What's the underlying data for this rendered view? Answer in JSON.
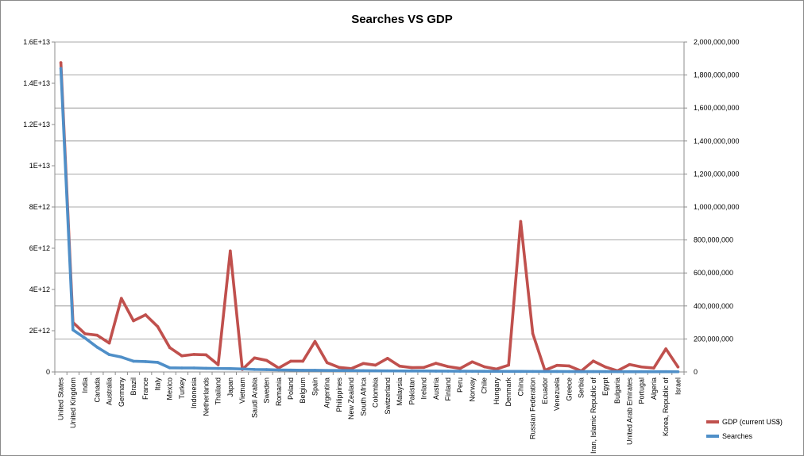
{
  "chart_data": {
    "type": "line",
    "title": "Searches VS GDP",
    "xlabel": "",
    "ylabel": "",
    "y2label": "",
    "legend_position": "right",
    "grid": true,
    "categories": [
      "United States",
      "United Kingdom",
      "India",
      "Canada",
      "Australia",
      "Germany",
      "Brazil",
      "France",
      "Italy",
      "Mexico",
      "Turkey",
      "Indonesia",
      "Netherlands",
      "Thailand",
      "Japan",
      "Vietnam",
      "Saudi Arabia",
      "Sweden",
      "Romania",
      "Poland",
      "Belgium",
      "Spain",
      "Argentina",
      "Philippines",
      "New Zealand",
      "South Africa",
      "Colombia",
      "Switzerland",
      "Malaysia",
      "Pakistan",
      "Ireland",
      "Austria",
      "Finland",
      "Peru",
      "Norway",
      "Chile",
      "Hungary",
      "Denmark",
      "China",
      "Russian Federation",
      "Ecuador",
      "Venezuela",
      "Greece",
      "Serbia",
      "Iran, Islamic Republic of",
      "Egypt",
      "Bulgaria",
      "United Arab Emirates",
      "Portugal",
      "Algeria",
      "Korea, Republic of",
      "Israel"
    ],
    "ylim": [
      0,
      16000000000000
    ],
    "y_ticks": [
      0,
      2000000000000,
      4000000000000,
      6000000000000,
      8000000000000,
      10000000000000,
      12000000000000,
      14000000000000,
      16000000000000
    ],
    "y_tick_labels": [
      "0",
      "2E+12",
      "4E+12",
      "6E+12",
      "8E+12",
      "1E+13",
      "1.2E+13",
      "1.4E+13",
      "1.6E+13"
    ],
    "y2lim": [
      0,
      2000000000
    ],
    "y2_ticks": [
      0,
      200000000,
      400000000,
      600000000,
      800000000,
      1000000000,
      1200000000,
      1400000000,
      1600000000,
      1800000000,
      2000000000
    ],
    "y2_tick_labels": [
      "0",
      "200,000,000",
      "400,000,000",
      "600,000,000",
      "800,000,000",
      "1,000,000,000",
      "1,200,000,000",
      "1,400,000,000",
      "1,600,000,000",
      "1,800,000,000",
      "2,000,000,000"
    ],
    "series": [
      {
        "name": "GDP (current US$)",
        "axis": "left",
        "color": "#c0504d",
        "values": [
          15000000000000,
          2400000000000,
          1850000000000,
          1780000000000,
          1400000000000,
          3570000000000,
          2480000000000,
          2770000000000,
          2200000000000,
          1180000000000,
          780000000000,
          850000000000,
          830000000000,
          350000000000,
          5870000000000,
          120000000000,
          680000000000,
          560000000000,
          190000000000,
          520000000000,
          520000000000,
          1480000000000,
          450000000000,
          220000000000,
          160000000000,
          410000000000,
          330000000000,
          660000000000,
          280000000000,
          210000000000,
          220000000000,
          420000000000,
          260000000000,
          170000000000,
          490000000000,
          250000000000,
          140000000000,
          330000000000,
          7300000000000,
          1860000000000,
          80000000000,
          320000000000,
          290000000000,
          45000000000,
          530000000000,
          240000000000,
          55000000000,
          360000000000,
          240000000000,
          190000000000,
          1120000000000,
          240000000000
        ]
      },
      {
        "name": "Searches",
        "axis": "right",
        "color": "#4f8fc8",
        "values": [
          1840000000,
          255000000,
          205000000,
          150000000,
          105000000,
          90000000,
          65000000,
          63000000,
          58000000,
          25000000,
          24000000,
          24000000,
          22000000,
          21000000,
          20000000,
          18000000,
          15000000,
          14000000,
          12000000,
          11000000,
          10000000,
          10000000,
          9000000,
          8500000,
          8000000,
          7500000,
          7000000,
          6500000,
          6000000,
          5800000,
          5500000,
          5000000,
          4800000,
          4500000,
          4200000,
          4000000,
          3800000,
          3500000,
          3300000,
          3000000,
          2800000,
          2600000,
          2400000,
          2200000,
          2000000,
          1900000,
          1800000,
          1600000,
          1500000,
          1400000,
          1300000,
          1200000
        ]
      }
    ]
  }
}
